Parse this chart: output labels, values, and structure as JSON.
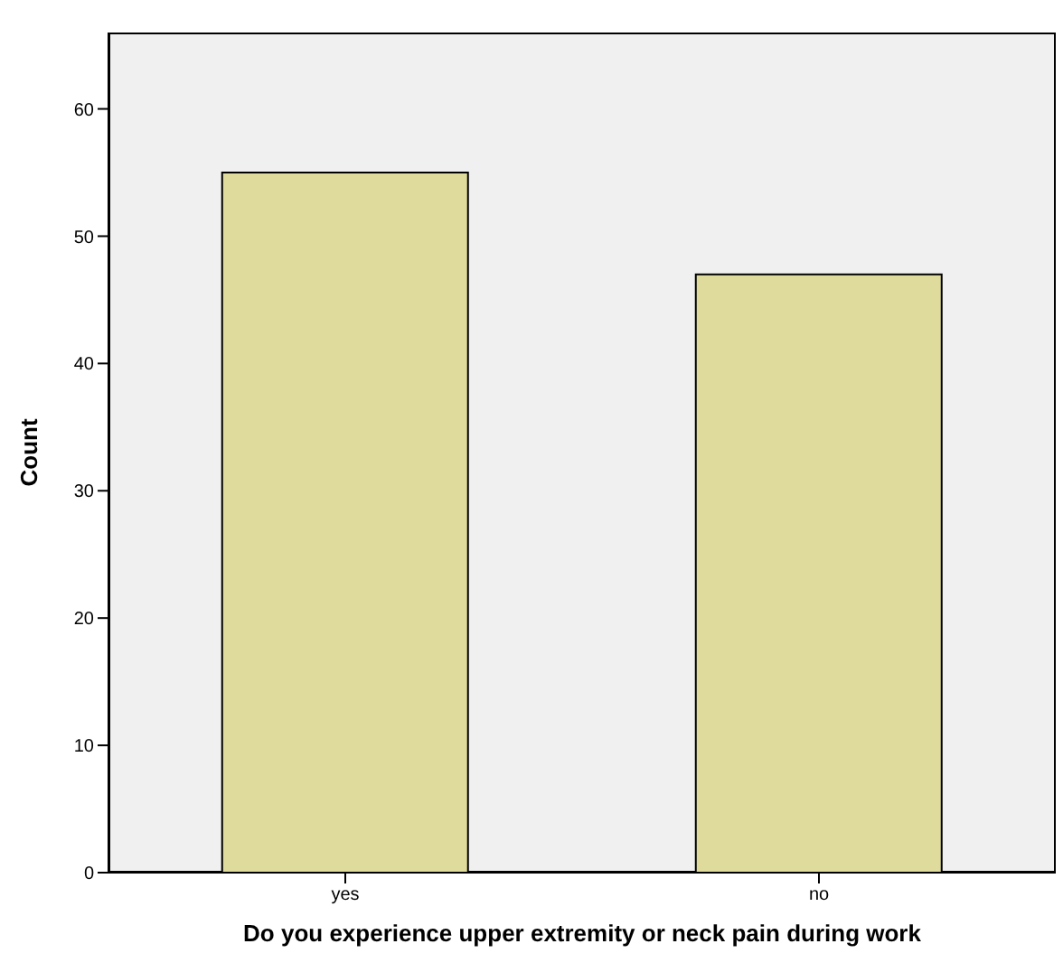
{
  "chart_data": {
    "type": "bar",
    "xlabel": "Do you experience upper extremity or neck pain during work",
    "ylabel": "Count",
    "categories": [
      "yes",
      "no"
    ],
    "values": [
      55,
      47
    ],
    "color": "#dedb9d",
    "ylim": [
      0,
      66
    ],
    "yticks": [
      0,
      10,
      20,
      30,
      40,
      50,
      60
    ],
    "grid": false,
    "legend": false
  }
}
